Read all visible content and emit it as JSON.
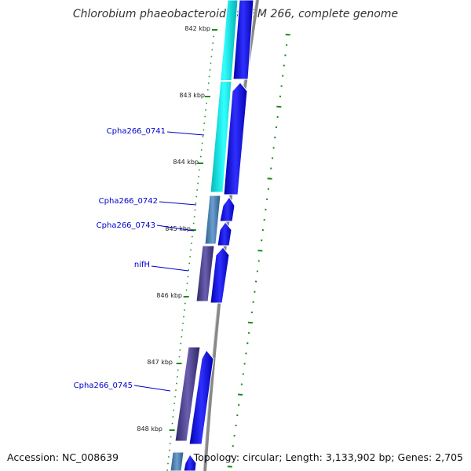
{
  "title": "Chlorobium phaeobacteroides DSM 266, complete genome",
  "footer": {
    "accession": "Accession: NC_008639",
    "summary": "Topology: circular; Length: 3,133,902 bp; Genes: 2,705"
  },
  "ruler_labels": [
    "842 kbp",
    "843 kbp",
    "844 kbp",
    "845 kbp",
    "846 kbp",
    "847 kbp",
    "848 kbp"
  ],
  "gene_labels": [
    "Cpha266_0741",
    "Cpha266_0742",
    "Cpha266_0743",
    "nifH",
    "Cpha266_0745"
  ],
  "colors": {
    "cds_forward": "#0000ee",
    "cog_cyan": "#00e5e5",
    "cog_steel": "#4682b4",
    "cog_slate": "#483d8b",
    "backbone": "#999999",
    "gc_ticks": "#1a8c1a",
    "label_blue": "#0000cc"
  }
}
